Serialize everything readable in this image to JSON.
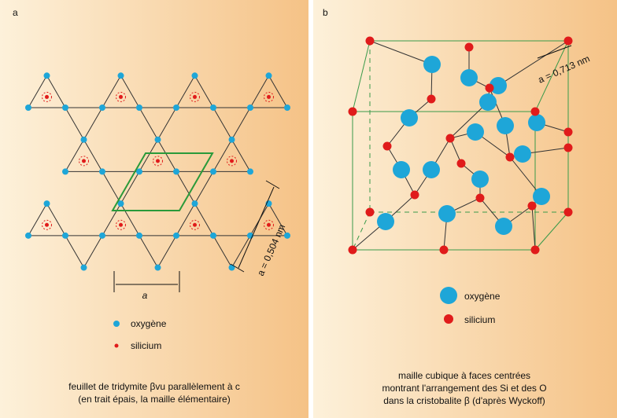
{
  "panel_a": {
    "label": "a",
    "dimension_horizontal": "a",
    "dimension_diagonal": "a = 0,504 nm",
    "legend": [
      "oxygène",
      "silicium"
    ],
    "caption": [
      "feuillet de tridymite βvu parallèlement à c",
      "(en trait épais, la maille élémentaire)"
    ]
  },
  "panel_b": {
    "label": "b",
    "dimension": "a = 0,713 nm",
    "legend": [
      "oxygène",
      "silicium"
    ],
    "caption": [
      "maille cubique à faces centrées",
      "montrant l'arrangement des Si et des O",
      "dans la cristobalite β (d'après Wyckoff)"
    ]
  }
}
